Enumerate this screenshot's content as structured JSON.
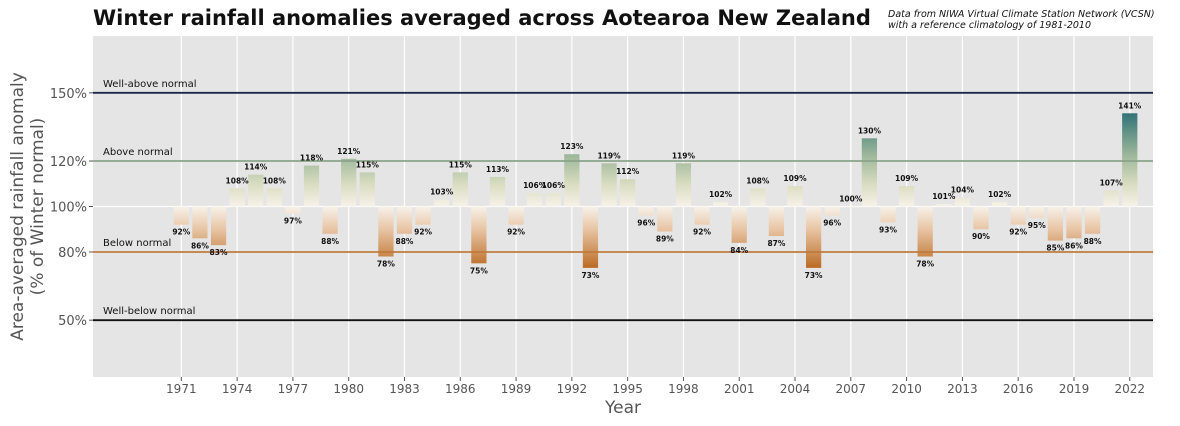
{
  "title": "Winter rainfall anomalies averaged across Aotearoa New Zealand",
  "source_line1": "Data from NIWA Virtual Climate Station Network (VCSN)",
  "source_line2": "with a reference climatology of 1981-2010",
  "chart_data": {
    "type": "bar",
    "title": "Winter rainfall anomalies averaged across Aotearoa New Zealand",
    "xlabel": "Year",
    "ylabel_line1": "Area-averaged rainfall anomaly",
    "ylabel_line2": "(% of Winter normal)",
    "baseline": 100,
    "ylim": [
      25,
      175
    ],
    "xlim": [
      1966.25,
      2023.25
    ],
    "x_ticks": [
      1971,
      1974,
      1977,
      1980,
      1983,
      1986,
      1989,
      1992,
      1995,
      1998,
      2001,
      2004,
      2007,
      2010,
      2013,
      2016,
      2019,
      2022
    ],
    "y_ticks": [
      {
        "value": 150,
        "label": "150%"
      },
      {
        "value": 120,
        "label": "120%"
      },
      {
        "value": 100,
        "label": "100%"
      },
      {
        "value": 80,
        "label": "80%"
      },
      {
        "value": 50,
        "label": "50%"
      }
    ],
    "reference_lines": [
      {
        "value": 150,
        "label": "Well-above normal",
        "color": "#1b2a4a"
      },
      {
        "value": 120,
        "label": "Above normal",
        "color": "#8aa38a"
      },
      {
        "value": 80,
        "label": "Below normal",
        "color": "#c07a3e"
      },
      {
        "value": 50,
        "label": "Well-below normal",
        "color": "#111111"
      }
    ],
    "colors": {
      "high": "#1b6470",
      "low": "#b8651c",
      "mid": "#f7f2ea",
      "background": "#e5e5e5"
    },
    "x": [
      1971,
      1972,
      1973,
      1974,
      1975,
      1976,
      1977,
      1978,
      1979,
      1980,
      1981,
      1982,
      1983,
      1984,
      1985,
      1986,
      1987,
      1988,
      1989,
      1990,
      1991,
      1992,
      1993,
      1994,
      1995,
      1996,
      1997,
      1998,
      1999,
      2000,
      2001,
      2002,
      2003,
      2004,
      2005,
      2006,
      2007,
      2008,
      2009,
      2010,
      2011,
      2012,
      2013,
      2014,
      2015,
      2016,
      2017,
      2018,
      2019,
      2020,
      2021,
      2022
    ],
    "values": [
      92,
      86,
      83,
      108,
      114,
      108,
      97,
      118,
      88,
      121,
      115,
      78,
      88,
      92,
      103,
      115,
      75,
      113,
      92,
      106,
      106,
      123,
      73,
      119,
      112,
      96,
      89,
      119,
      92,
      102,
      84,
      108,
      87,
      109,
      73,
      96,
      100,
      130,
      93,
      109,
      78,
      101,
      104,
      90,
      102,
      92,
      95,
      85,
      86,
      88,
      107,
      141
    ],
    "labels": [
      "92%",
      "86%",
      "83%",
      "108%",
      "114%",
      "108%",
      "97%",
      "118%",
      "88%",
      "121%",
      "115%",
      "78%",
      "88%",
      "92%",
      "103%",
      "115%",
      "75%",
      "113%",
      "92%",
      "106%",
      "106%",
      "123%",
      "73%",
      "119%",
      "112%",
      "96%",
      "89%",
      "119%",
      "92%",
      "102%",
      "84%",
      "108%",
      "87%",
      "109%",
      "73%",
      "96%",
      "100%",
      "130%",
      "93%",
      "109%",
      "78%",
      "101%",
      "104%",
      "90%",
      "102%",
      "92%",
      "95%",
      "85%",
      "86%",
      "88%",
      "107%",
      "141%"
    ]
  }
}
